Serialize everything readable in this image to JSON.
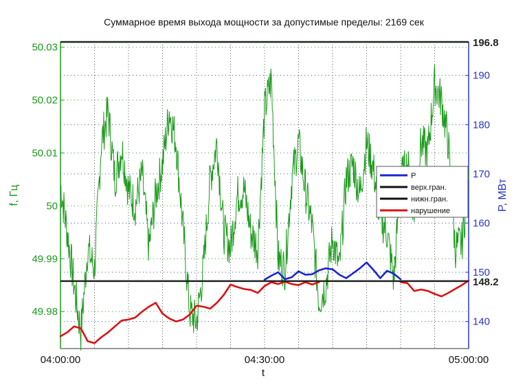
{
  "chart_data": {
    "type": "line",
    "title": "Суммарное время выхода мощности за допустимые пределы: 2169 сек",
    "xlabel": "t",
    "ylabel_left": "f, Гц",
    "ylabel_right": "P, МВт",
    "x_ticks": [
      "04:00:00",
      "04:30:00",
      "05:00:00"
    ],
    "x_minutes_range": [
      0,
      60
    ],
    "ylim_left": [
      49.973,
      50.031
    ],
    "ylim_right": [
      134.5,
      196.8
    ],
    "y_ticks_left": [
      "50.03",
      "50.02",
      "50.01",
      "50",
      "49.99",
      "49.98"
    ],
    "y_ticks_left_values": [
      50.03,
      50.02,
      50.01,
      50.0,
      49.99,
      49.98
    ],
    "y_ticks_right": [
      "190",
      "180",
      "170",
      "160",
      "150",
      "140"
    ],
    "y_ticks_right_values": [
      190,
      180,
      170,
      160,
      150,
      140
    ],
    "grid": true,
    "legend_position": "right",
    "legend": [
      "P",
      "верх.гран.",
      "нижн.гран.",
      "нарушение"
    ],
    "limit_upper": 196.8,
    "limit_upper_label": "196.8",
    "limit_lower": 148.2,
    "limit_lower_label": "148.2",
    "series": [
      {
        "name": "P",
        "axis": "right",
        "color": "#1a24d0",
        "x": [
          30,
          31,
          32,
          33,
          34,
          35,
          36,
          37,
          38,
          39,
          40,
          41,
          42,
          43,
          44,
          45,
          46,
          47,
          48,
          49,
          50
        ],
        "values": [
          148.5,
          149.3,
          150.0,
          148.6,
          149.0,
          150.2,
          149.5,
          149.6,
          150.4,
          150.8,
          150.6,
          149.5,
          148.8,
          149.8,
          150.8,
          152.0,
          150.5,
          148.8,
          150.3,
          149.7,
          148.6
        ]
      },
      {
        "name": "нарушение",
        "axis": "right",
        "color": "#dd1111",
        "x": [
          0,
          1,
          2,
          3,
          4,
          5,
          6,
          7,
          8,
          9,
          10,
          11,
          12,
          13,
          14,
          15,
          16,
          17,
          18,
          19,
          20,
          21,
          22,
          23,
          24,
          25,
          26,
          27,
          28,
          29,
          30
        ],
        "values": [
          137.0,
          137.8,
          139.0,
          138.6,
          136.0,
          135.6,
          136.8,
          137.8,
          139.0,
          140.2,
          140.4,
          140.8,
          142.0,
          143.0,
          143.8,
          141.6,
          140.6,
          140.0,
          140.4,
          141.4,
          143.2,
          143.0,
          142.6,
          143.8,
          145.4,
          147.5,
          147.0,
          146.6,
          146.4,
          145.8,
          147.2
        ]
      },
      {
        "name": "нарушение",
        "axis": "right",
        "color": "#dd1111",
        "x": [
          30,
          31,
          32,
          33,
          34,
          35,
          36,
          37,
          38
        ],
        "values": [
          147.2,
          148.0,
          147.6,
          148.1,
          147.6,
          147.4,
          148.0,
          147.5,
          148.0
        ]
      },
      {
        "name": "нарушение",
        "axis": "right",
        "color": "#dd1111",
        "x": [
          50,
          51,
          52,
          53,
          54,
          55,
          56,
          57,
          58,
          59,
          60
        ],
        "values": [
          148.0,
          147.8,
          146.2,
          146.5,
          146.2,
          145.6,
          145.1,
          145.8,
          146.6,
          147.4,
          148.3
        ]
      },
      {
        "name": "f",
        "axis": "left",
        "color": "#1a9a1a",
        "x": [
          0,
          1,
          2,
          3,
          4,
          5,
          6,
          7,
          8,
          9,
          10,
          11,
          12,
          13,
          14,
          15,
          16,
          17,
          18,
          19,
          20,
          21,
          22,
          23,
          24,
          25,
          26,
          27,
          28,
          29,
          30,
          31,
          32,
          33,
          34,
          35,
          36,
          37,
          38,
          39,
          40,
          41,
          42,
          43,
          44,
          45,
          46,
          47,
          48,
          49,
          50,
          51,
          52,
          53,
          54,
          55,
          56,
          57,
          58,
          59,
          60
        ],
        "values": [
          50.004,
          49.995,
          49.985,
          49.976,
          49.992,
          49.988,
          50.012,
          50.018,
          50.005,
          50.011,
          50.003,
          50.0,
          50.006,
          49.992,
          50.002,
          50.008,
          50.018,
          50.012,
          49.996,
          49.98,
          49.978,
          49.988,
          50.005,
          50.012,
          49.995,
          49.992,
          50.002,
          50.003,
          49.995,
          49.992,
          50.018,
          50.024,
          49.99,
          49.988,
          50.005,
          50.012,
          50.003,
          49.996,
          49.982,
          49.985,
          49.994,
          49.988,
          50.005,
          50.008,
          50.002,
          50.012,
          50.007,
          49.998,
          49.995,
          49.986,
          50.005,
          50.008,
          49.999,
          50.012,
          50.01,
          50.023,
          50.02,
          50.012,
          49.992,
          49.993,
          50.005
        ]
      }
    ]
  }
}
